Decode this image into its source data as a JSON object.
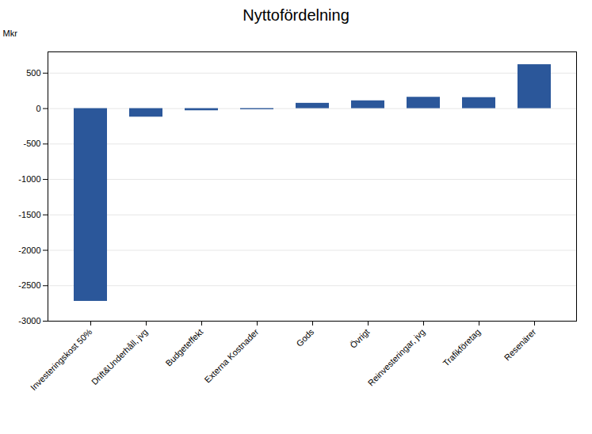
{
  "chart_data": {
    "type": "bar",
    "title": "Nyttofördelning",
    "categories": [
      "Investeringskost 50%",
      "Drift&Underhåll, jvg",
      "Budgeteffekt",
      "Externa Kostnader",
      "Gods",
      "Övrigt",
      "Reinvesteringar, jvg",
      "Trafikföretag",
      "Resenärer"
    ],
    "values": [
      -2720,
      -120,
      -30,
      -15,
      75,
      110,
      160,
      155,
      620
    ],
    "color": "#2b579a",
    "ylabel": "Mkr",
    "ylim": [
      -3000,
      800
    ],
    "yticks": [
      -3000,
      -2500,
      -2000,
      -1500,
      -1000,
      -500,
      0,
      500
    ],
    "grid": true
  }
}
